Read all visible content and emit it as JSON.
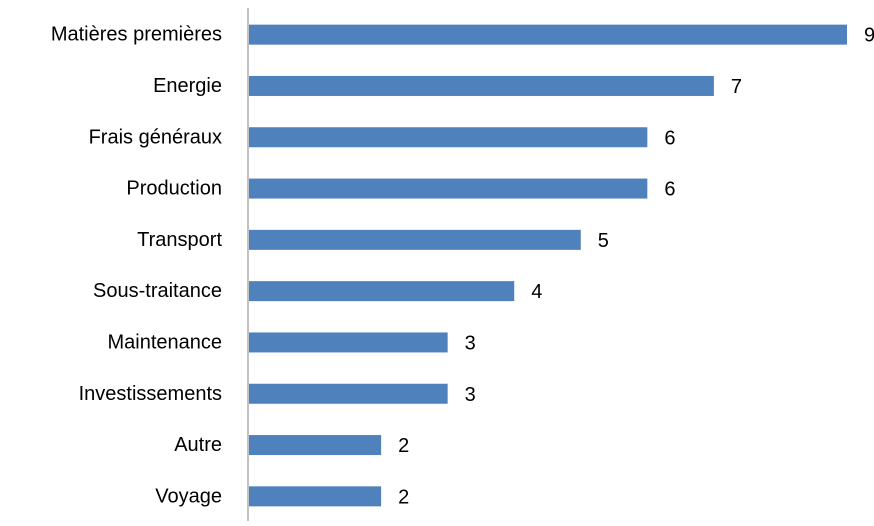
{
  "chart_data": {
    "type": "bar",
    "orientation": "horizontal",
    "title": "",
    "xlabel": "",
    "ylabel": "",
    "categories": [
      "Matières premières",
      "Energie",
      "Frais généraux",
      "Production",
      "Transport",
      "Sous-traitance",
      "Maintenance",
      "Investissements",
      "Autre",
      "Voyage"
    ],
    "values": [
      9,
      7,
      6,
      6,
      5,
      4,
      3,
      3,
      2,
      2
    ],
    "value_labels": [
      "9",
      "7",
      "6",
      "6",
      "5",
      "4",
      "3",
      "3",
      "2",
      "2"
    ],
    "xlim": [
      0,
      9
    ],
    "grid": false,
    "legend": "none",
    "bar_color": "#4F81BD",
    "axis_color": "#868686",
    "text_color": "#000000"
  }
}
